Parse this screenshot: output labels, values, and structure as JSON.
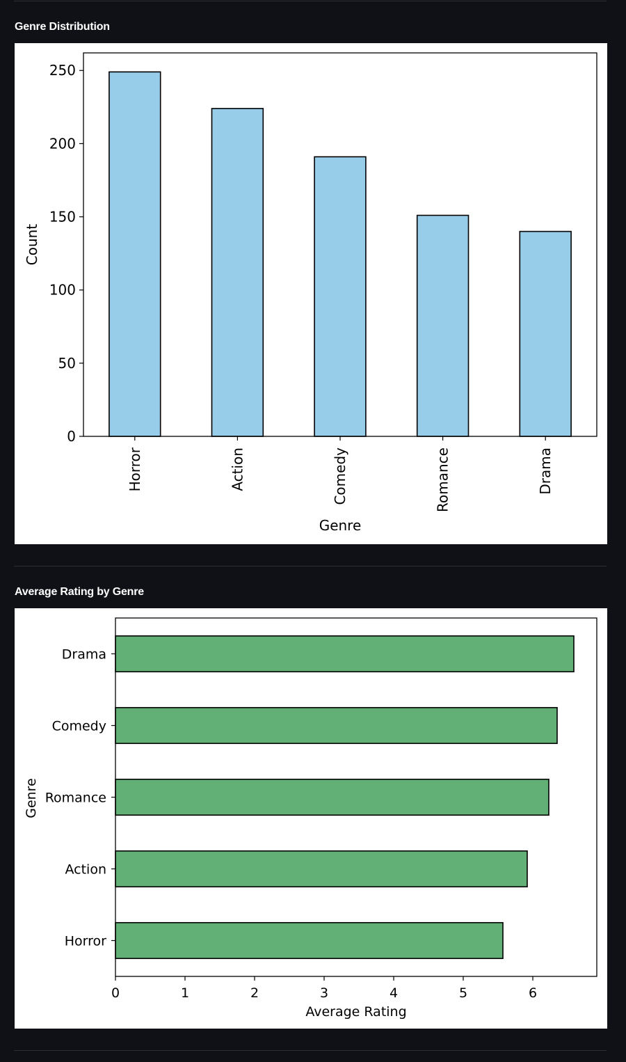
{
  "sections": [
    {
      "title": "Genre Distribution"
    },
    {
      "title": "Average Rating by Genre"
    }
  ],
  "chart_data": [
    {
      "type": "bar",
      "orientation": "vertical",
      "title": "",
      "categories": [
        "Horror",
        "Action",
        "Comedy",
        "Romance",
        "Drama"
      ],
      "values": [
        249,
        224,
        191,
        151,
        140
      ],
      "xlabel": "Genre",
      "ylabel": "Count",
      "ylim": [
        0,
        262
      ],
      "yticks": [
        0,
        50,
        100,
        150,
        200,
        250
      ],
      "color": "#97cde8",
      "edgecolor": "#000000",
      "grid": false,
      "legend": "none"
    },
    {
      "type": "bar",
      "orientation": "horizontal",
      "title": "",
      "categories": [
        "Horror",
        "Action",
        "Romance",
        "Comedy",
        "Drama"
      ],
      "values": [
        5.57,
        5.92,
        6.23,
        6.35,
        6.59
      ],
      "xlabel": "Average Rating",
      "ylabel": "Genre",
      "xlim": [
        0,
        6.92
      ],
      "xticks": [
        0,
        1,
        2,
        3,
        4,
        5,
        6
      ],
      "color": "#63b077",
      "edgecolor": "#000000",
      "grid": false,
      "legend": "none"
    }
  ]
}
